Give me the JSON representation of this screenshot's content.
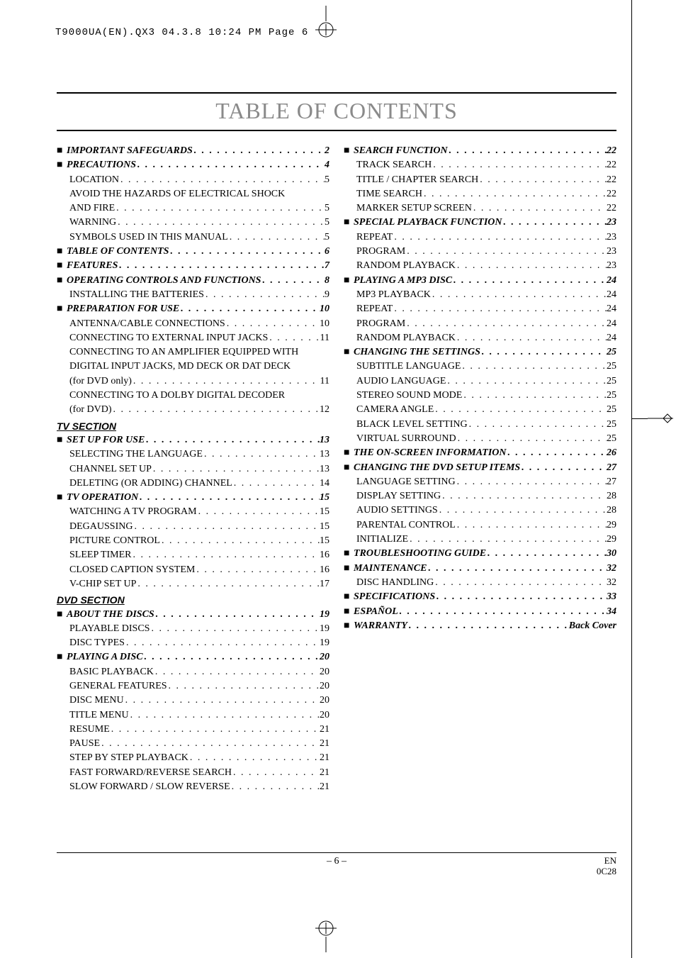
{
  "print_header": "T9000UA(EN).QX3  04.3.8  10:24 PM  Page 6",
  "title": "TABLE OF CONTENTS",
  "left": [
    {
      "t": "head",
      "label": "IMPORTANT SAFEGUARDS",
      "pg": "2"
    },
    {
      "t": "head",
      "label": "PRECAUTIONS",
      "pg": "4"
    },
    {
      "t": "sub",
      "label": "LOCATION",
      "pg": "5"
    },
    {
      "t": "sub",
      "label": "AVOID THE HAZARDS OF ELECTRICAL SHOCK AND FIRE",
      "pg": "5",
      "wrap": true
    },
    {
      "t": "sub",
      "label": "WARNING",
      "pg": "5"
    },
    {
      "t": "sub",
      "label": "SYMBOLS USED IN THIS MANUAL",
      "pg": "5"
    },
    {
      "t": "head",
      "label": "TABLE OF CONTENTS",
      "pg": "6"
    },
    {
      "t": "head",
      "label": "FEATURES",
      "pg": "7"
    },
    {
      "t": "head",
      "label": "OPERATING CONTROLS AND FUNCTIONS",
      "pg": "8"
    },
    {
      "t": "sub",
      "label": "INSTALLING THE BATTERIES",
      "pg": "9"
    },
    {
      "t": "head",
      "label": "PREPARATION FOR USE",
      "pg": "10"
    },
    {
      "t": "sub",
      "label": "ANTENNA/CABLE CONNECTIONS",
      "pg": "10"
    },
    {
      "t": "sub",
      "label": "CONNECTING TO EXTERNAL INPUT JACKS",
      "pg": "11"
    },
    {
      "t": "sub",
      "label": "CONNECTING TO AN AMPLIFIER EQUIPPED WITH DIGITAL INPUT JACKS, MD DECK OR DAT DECK (for DVD only)",
      "pg": "11",
      "wrap": true
    },
    {
      "t": "sub",
      "label": "CONNECTING TO A DOLBY DIGITAL DECODER (for DVD)",
      "pg": "12",
      "wrap": true
    },
    {
      "t": "section",
      "label": "TV SECTION"
    },
    {
      "t": "head",
      "label": "SET UP FOR USE",
      "pg": "13"
    },
    {
      "t": "sub",
      "label": "SELECTING THE LANGUAGE",
      "pg": "13"
    },
    {
      "t": "sub",
      "label": "CHANNEL SET UP",
      "pg": "13"
    },
    {
      "t": "sub",
      "label": "DELETING (OR ADDING) CHANNEL",
      "pg": "14"
    },
    {
      "t": "head",
      "label": "TV OPERATION",
      "pg": "15"
    },
    {
      "t": "sub",
      "label": "WATCHING A TV PROGRAM",
      "pg": "15"
    },
    {
      "t": "sub",
      "label": "DEGAUSSING",
      "pg": "15"
    },
    {
      "t": "sub",
      "label": "PICTURE CONTROL",
      "pg": "15"
    },
    {
      "t": "sub",
      "label": "SLEEP TIMER",
      "pg": "16"
    },
    {
      "t": "sub",
      "label": "CLOSED CAPTION SYSTEM",
      "pg": "16"
    },
    {
      "t": "sub",
      "label": "V-CHIP SET UP",
      "pg": "17"
    },
    {
      "t": "section",
      "label": "DVD SECTION"
    },
    {
      "t": "head",
      "label": "ABOUT THE DISCS",
      "pg": "19"
    },
    {
      "t": "sub",
      "label": "PLAYABLE DISCS",
      "pg": "19"
    },
    {
      "t": "sub",
      "label": "DISC TYPES",
      "pg": "19"
    },
    {
      "t": "head",
      "label": "PLAYING A DISC",
      "pg": "20"
    },
    {
      "t": "sub",
      "label": "BASIC PLAYBACK",
      "pg": "20"
    },
    {
      "t": "sub",
      "label": "GENERAL FEATURES",
      "pg": "20"
    },
    {
      "t": "sub",
      "label": "DISC MENU",
      "pg": "20"
    },
    {
      "t": "sub",
      "label": "TITLE MENU",
      "pg": "20"
    },
    {
      "t": "sub",
      "label": "RESUME",
      "pg": "21"
    },
    {
      "t": "sub",
      "label": "PAUSE",
      "pg": "21"
    },
    {
      "t": "sub",
      "label": "STEP BY STEP PLAYBACK",
      "pg": "21"
    },
    {
      "t": "sub",
      "label": "FAST FORWARD/REVERSE SEARCH",
      "pg": "21"
    },
    {
      "t": "sub",
      "label": "SLOW FORWARD / SLOW REVERSE",
      "pg": "21"
    }
  ],
  "right": [
    {
      "t": "head",
      "label": "SEARCH FUNCTION",
      "pg": "22"
    },
    {
      "t": "sub",
      "label": "TRACK SEARCH",
      "pg": "22"
    },
    {
      "t": "sub",
      "label": "TITLE / CHAPTER SEARCH",
      "pg": "22"
    },
    {
      "t": "sub",
      "label": "TIME SEARCH",
      "pg": "22"
    },
    {
      "t": "sub",
      "label": "MARKER SETUP SCREEN",
      "pg": "22"
    },
    {
      "t": "head",
      "label": "SPECIAL PLAYBACK FUNCTION",
      "pg": "23"
    },
    {
      "t": "sub",
      "label": "REPEAT",
      "pg": "23"
    },
    {
      "t": "sub",
      "label": "PROGRAM",
      "pg": "23"
    },
    {
      "t": "sub",
      "label": "RANDOM PLAYBACK",
      "pg": "23"
    },
    {
      "t": "head",
      "label": "PLAYING A MP3 DISC",
      "pg": "24"
    },
    {
      "t": "sub",
      "label": "MP3 PLAYBACK",
      "pg": "24"
    },
    {
      "t": "sub",
      "label": "REPEAT",
      "pg": "24"
    },
    {
      "t": "sub",
      "label": "PROGRAM",
      "pg": "24"
    },
    {
      "t": "sub",
      "label": "RANDOM PLAYBACK",
      "pg": "24"
    },
    {
      "t": "head",
      "label": "CHANGING THE SETTINGS",
      "pg": "25"
    },
    {
      "t": "sub",
      "label": "SUBTITLE LANGUAGE",
      "pg": "25"
    },
    {
      "t": "sub",
      "label": "AUDIO LANGUAGE",
      "pg": "25"
    },
    {
      "t": "sub",
      "label": "STEREO SOUND MODE",
      "pg": "25"
    },
    {
      "t": "sub",
      "label": "CAMERA ANGLE",
      "pg": "25"
    },
    {
      "t": "sub",
      "label": "BLACK LEVEL SETTING",
      "pg": "25"
    },
    {
      "t": "sub",
      "label": "VIRTUAL SURROUND",
      "pg": "25"
    },
    {
      "t": "head",
      "label": "THE ON-SCREEN INFORMATION",
      "pg": "26"
    },
    {
      "t": "head",
      "label": "CHANGING THE DVD SETUP ITEMS",
      "pg": "27"
    },
    {
      "t": "sub",
      "label": "LANGUAGE SETTING",
      "pg": "27"
    },
    {
      "t": "sub",
      "label": "DISPLAY SETTING",
      "pg": "28"
    },
    {
      "t": "sub",
      "label": "AUDIO SETTINGS",
      "pg": "28"
    },
    {
      "t": "sub",
      "label": "PARENTAL CONTROL",
      "pg": "29"
    },
    {
      "t": "sub",
      "label": "INITIALIZE",
      "pg": "29"
    },
    {
      "t": "head",
      "label": "TROUBLESHOOTING GUIDE",
      "pg": "30"
    },
    {
      "t": "head",
      "label": "MAINTENANCE",
      "pg": "32"
    },
    {
      "t": "sub",
      "label": "DISC HANDLING",
      "pg": "32"
    },
    {
      "t": "head",
      "label": "SPECIFICATIONS",
      "pg": "33"
    },
    {
      "t": "head",
      "label": "ESPAÑOL",
      "pg": "34"
    },
    {
      "t": "head",
      "label": "WARRANTY",
      "pg": "Back Cover"
    }
  ],
  "footer": {
    "center": "– 6 –",
    "right_top": "EN",
    "right_bottom": "0C28"
  }
}
